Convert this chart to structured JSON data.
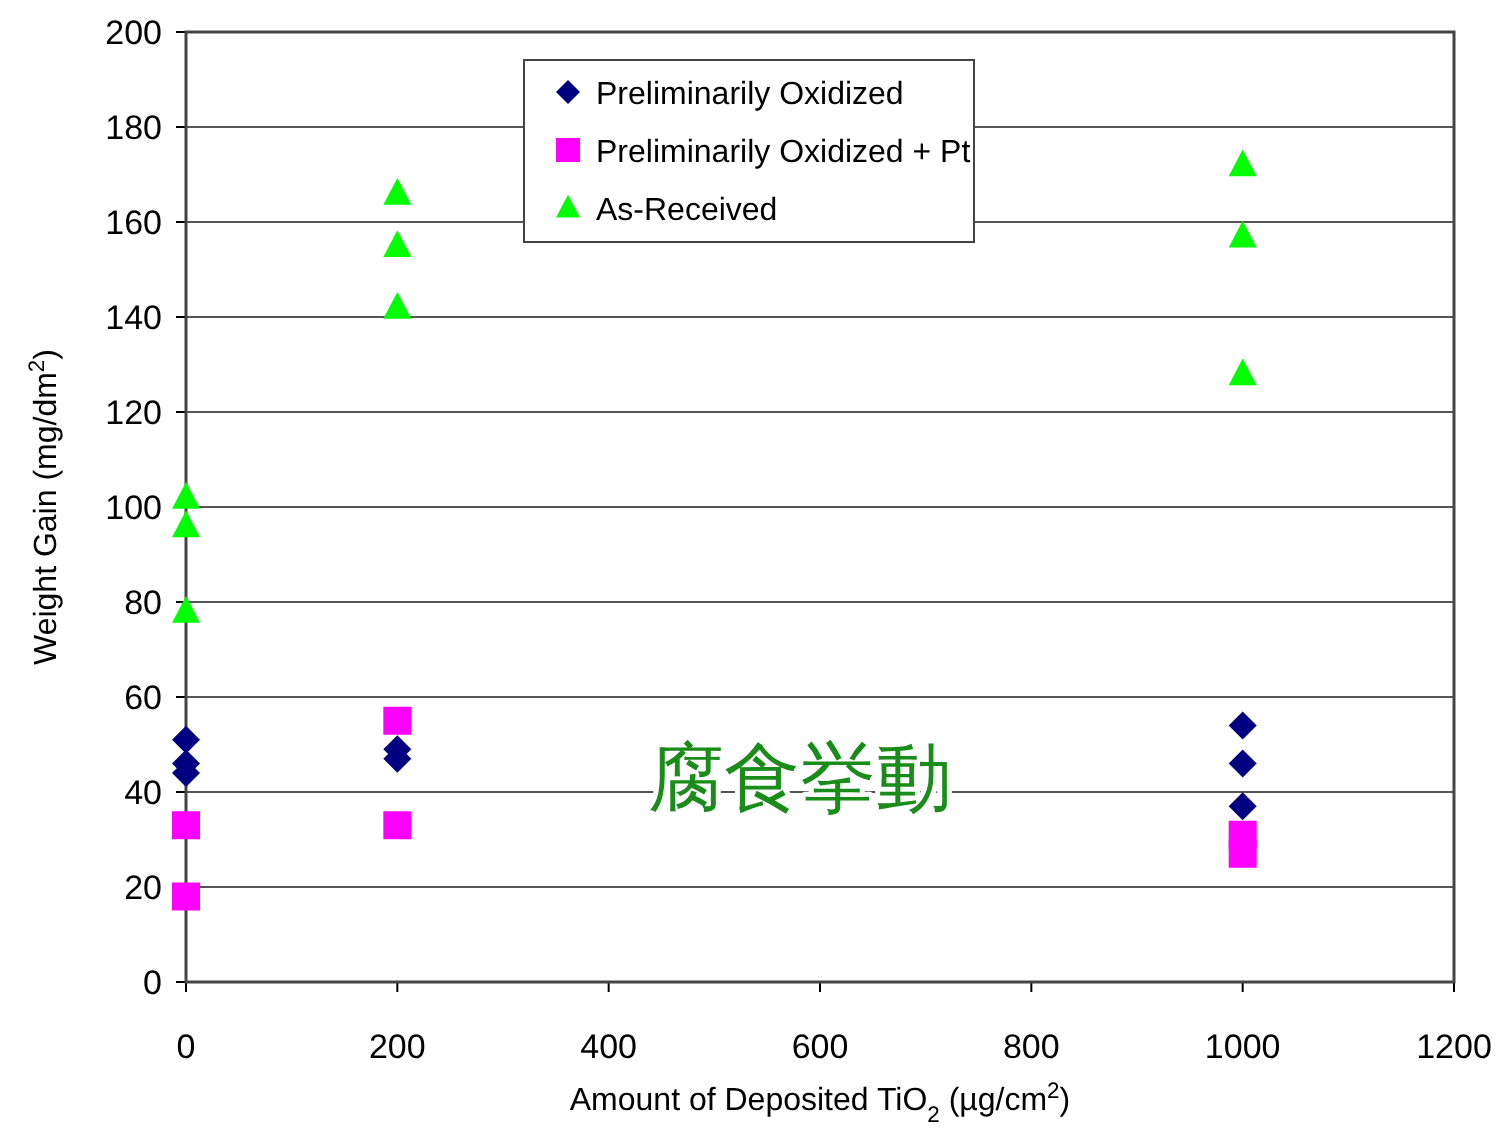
{
  "chart_data": {
    "type": "scatter",
    "xlabel": "Amount of Deposited TiO$_{2}$ (µg/cm$^{2}$)",
    "ylabel": "Weight Gain (mg/dm$^{2}$)",
    "xlim": [
      0,
      1200
    ],
    "xticks": [
      0,
      200,
      400,
      600,
      800,
      1000,
      1200
    ],
    "ylim": [
      0,
      200
    ],
    "yticks": [
      0,
      20,
      40,
      60,
      80,
      100,
      120,
      140,
      160,
      180,
      200
    ],
    "grid": "y",
    "legend": "top",
    "annotations": [
      "腐食挙動"
    ],
    "series": [
      {
        "name": "Preliminarily Oxidized",
        "color": "#000080",
        "marker": "diamond",
        "x": [
          0,
          0,
          0,
          200,
          200,
          1000,
          1000,
          1000
        ],
        "values": [
          51,
          46,
          44,
          49,
          47,
          54,
          46,
          37
        ]
      },
      {
        "name": "Preliminarily Oxidized + Pt",
        "color": "#ff00ff",
        "marker": "square",
        "x": [
          0,
          0,
          200,
          200,
          1000,
          1000
        ],
        "values": [
          33,
          18,
          55,
          33,
          31,
          27
        ]
      },
      {
        "name": "As-Received",
        "color": "#00ff00",
        "marker": "triangle",
        "x": [
          0,
          0,
          0,
          200,
          200,
          200,
          1000,
          1000,
          1000
        ],
        "values": [
          102,
          96,
          78,
          166,
          155,
          142,
          172,
          157,
          128
        ]
      }
    ]
  }
}
